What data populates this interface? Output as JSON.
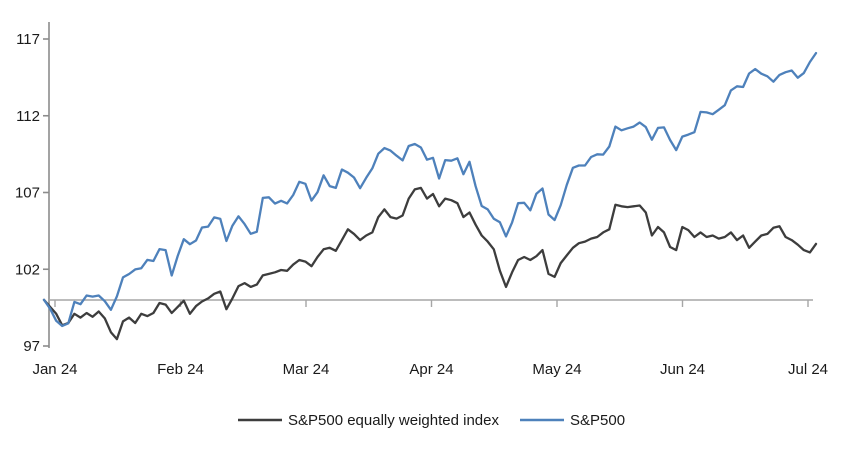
{
  "chart_data": {
    "type": "line",
    "title": "",
    "x_axis": {
      "labels": [
        "Jan 24",
        "Feb 24",
        "Mar 24",
        "Apr 24",
        "May 24",
        "Jun 24",
        "Jul 24"
      ]
    },
    "y_axis": {
      "min": 97,
      "max": 117,
      "ticks": [
        117,
        112,
        107,
        102,
        97
      ],
      "tick_labels": [
        "117",
        "112",
        "107",
        "102",
        "97"
      ]
    },
    "baseline_value": 100,
    "grid": "off",
    "legend_position": "bottom",
    "axis_colors": {
      "y_axis": "#8c8c8c",
      "x_axis": "#a6a6a6"
    },
    "series": [
      {
        "name": "S&P500 equally weighted index",
        "color": "#3d3d3d",
        "values": [
          100.0,
          99.55,
          99.1,
          98.35,
          98.5,
          99.1,
          98.85,
          99.15,
          98.9,
          99.25,
          98.8,
          97.9,
          97.45,
          98.6,
          98.85,
          98.5,
          99.1,
          98.95,
          99.15,
          99.8,
          99.7,
          99.15,
          99.55,
          99.95,
          99.1,
          99.6,
          99.9,
          100.1,
          100.4,
          100.55,
          99.4,
          100.1,
          100.9,
          101.1,
          100.85,
          101.0,
          101.6,
          101.7,
          101.8,
          101.95,
          101.9,
          102.3,
          102.6,
          102.5,
          102.2,
          102.8,
          103.3,
          103.4,
          103.2,
          103.9,
          104.6,
          104.3,
          103.9,
          104.2,
          104.4,
          105.4,
          105.9,
          105.4,
          105.3,
          105.5,
          106.6,
          107.2,
          107.3,
          106.6,
          106.9,
          106.1,
          106.6,
          106.5,
          106.3,
          105.4,
          105.7,
          104.9,
          104.2,
          103.8,
          103.3,
          101.9,
          100.85,
          101.8,
          102.6,
          102.8,
          102.6,
          102.85,
          103.25,
          101.7,
          101.5,
          102.4,
          102.9,
          103.4,
          103.7,
          103.8,
          104.0,
          104.1,
          104.4,
          104.6,
          106.2,
          106.1,
          106.05,
          106.1,
          106.15,
          105.7,
          104.2,
          104.75,
          104.4,
          103.45,
          103.25,
          104.75,
          104.55,
          104.1,
          104.4,
          104.1,
          104.2,
          104.0,
          104.1,
          104.4,
          103.9,
          104.2,
          103.4,
          103.8,
          104.2,
          104.3,
          104.7,
          104.8,
          104.1,
          103.9,
          103.6,
          103.25,
          103.1,
          103.65
        ]
      },
      {
        "name": "S&P500",
        "color": "#4e81bb",
        "values": [
          100.0,
          99.43,
          98.64,
          98.3,
          98.48,
          99.87,
          99.72,
          100.29,
          100.22,
          100.29,
          99.92,
          99.36,
          100.23,
          101.47,
          101.69,
          101.99,
          102.07,
          102.61,
          102.54,
          103.31,
          103.25,
          101.59,
          102.86,
          103.96,
          103.63,
          103.87,
          104.72,
          104.78,
          105.38,
          105.28,
          103.84,
          104.84,
          105.45,
          104.94,
          104.31,
          104.44,
          106.65,
          106.69,
          106.28,
          106.46,
          106.29,
          106.84,
          107.7,
          107.57,
          106.47,
          107.02,
          108.12,
          107.42,
          107.3,
          108.5,
          108.29,
          107.98,
          107.28,
          107.96,
          108.57,
          109.53,
          109.89,
          109.73,
          109.4,
          109.09,
          110.03,
          110.16,
          109.93,
          109.14,
          109.26,
          107.91,
          109.11,
          109.07,
          109.23,
          108.19,
          109.0,
          107.41,
          106.12,
          105.9,
          105.29,
          105.06,
          104.14,
          105.05,
          106.3,
          106.33,
          105.84,
          106.92,
          107.26,
          105.57,
          105.21,
          106.17,
          107.5,
          108.61,
          108.76,
          108.76,
          109.31,
          109.49,
          109.47,
          110.0,
          111.29,
          111.05,
          111.18,
          111.29,
          111.56,
          111.26,
          110.44,
          111.21,
          111.24,
          110.42,
          109.76,
          110.64,
          110.77,
          110.93,
          112.25,
          112.22,
          112.1,
          112.39,
          112.69,
          113.65,
          113.92,
          113.87,
          114.75,
          115.04,
          114.74,
          114.57,
          114.22,
          114.66,
          114.84,
          114.95,
          114.48,
          114.78,
          115.5,
          116.08
        ]
      }
    ]
  }
}
